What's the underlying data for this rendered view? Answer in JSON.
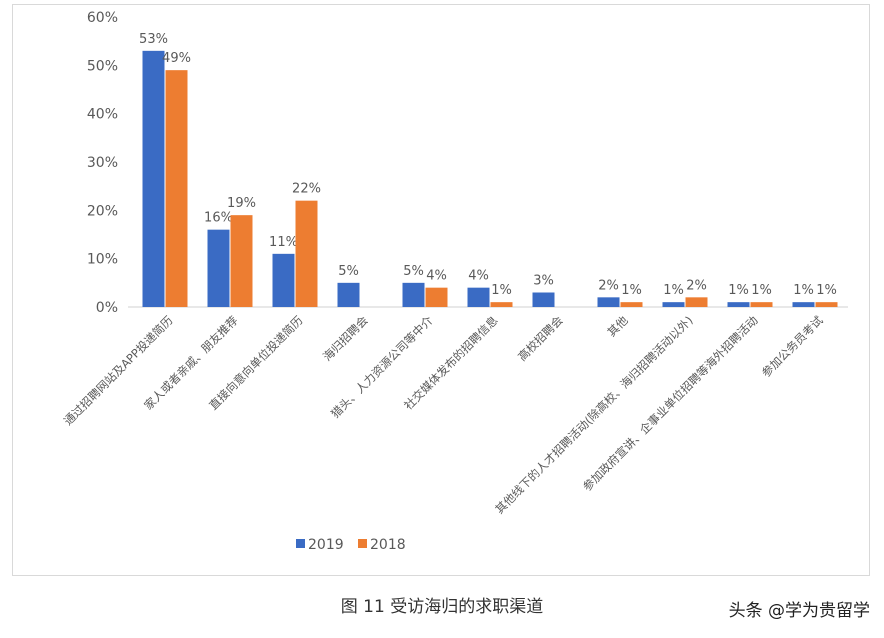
{
  "chart_data": {
    "type": "bar",
    "title": "",
    "xlabel": "",
    "ylabel": "",
    "ylim": [
      0,
      60
    ],
    "yticks": [
      "0%",
      "10%",
      "20%",
      "30%",
      "40%",
      "50%",
      "60%"
    ],
    "grid": false,
    "legend_position": "bottom",
    "categories": [
      "通过招聘网站及APP投递简历",
      "家人或者亲戚、朋友推荐",
      "直接向意向单位投递简历",
      "海归招聘会",
      "猎头、人力资源公司等中介",
      "社交媒体发布的招聘信息",
      "高校招聘会",
      "其他",
      "其他线下的人才招聘活动(除高校、海归招聘活动以外)",
      "参加政府宣讲、企事业单位招聘等海外招聘活动",
      "参加公务员考试"
    ],
    "series": [
      {
        "name": "2019",
        "color": "#3a6bc4",
        "values": [
          53,
          16,
          11,
          5,
          5,
          4,
          3,
          2,
          1,
          1,
          1
        ],
        "labels": [
          "53%",
          "16%",
          "11%",
          "5%",
          "5%",
          "4%",
          "3%",
          "2%",
          "1%",
          "1%",
          "1%"
        ]
      },
      {
        "name": "2018",
        "color": "#ed7d31",
        "values": [
          49,
          19,
          22,
          null,
          4,
          1,
          null,
          1,
          2,
          1,
          1
        ],
        "labels": [
          "49%",
          "19%",
          "22%",
          "",
          "4%",
          "1%",
          "",
          "1%",
          "2%",
          "1%",
          "1%"
        ]
      }
    ]
  },
  "caption": "图 11  受访海归的求职渠道",
  "watermark": "头条 @学为贵留学"
}
